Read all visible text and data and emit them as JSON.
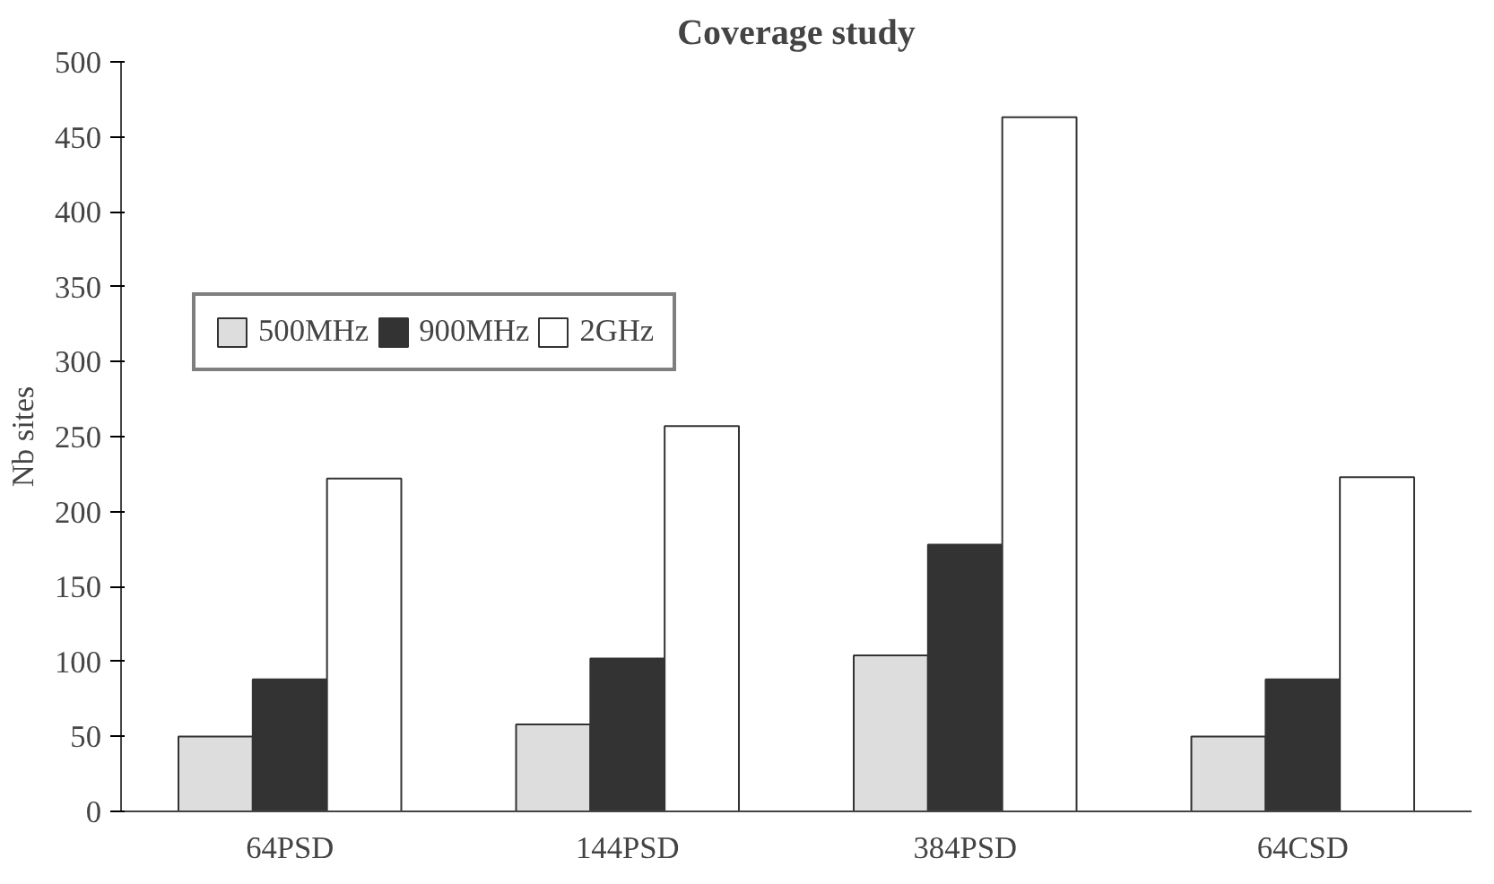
{
  "chart_data": {
    "type": "bar",
    "title": "Coverage study",
    "ylabel": "Nb sites",
    "categories": [
      "64PSD",
      "144PSD",
      "384PSD",
      "64CSD"
    ],
    "series": [
      {
        "name": "500MHz",
        "color": "#dddddd",
        "values": [
          50,
          58,
          104,
          50
        ]
      },
      {
        "name": "900MHz",
        "color": "#333333",
        "values": [
          88,
          102,
          178,
          88
        ]
      },
      {
        "name": "2GHz",
        "color": "#ffffff",
        "values": [
          222,
          257,
          463,
          223
        ]
      }
    ],
    "ylim": [
      0,
      500
    ],
    "yticks": [
      0,
      50,
      100,
      150,
      200,
      250,
      300,
      350,
      400,
      450,
      500
    ],
    "grid": false,
    "legend": "top left"
  }
}
